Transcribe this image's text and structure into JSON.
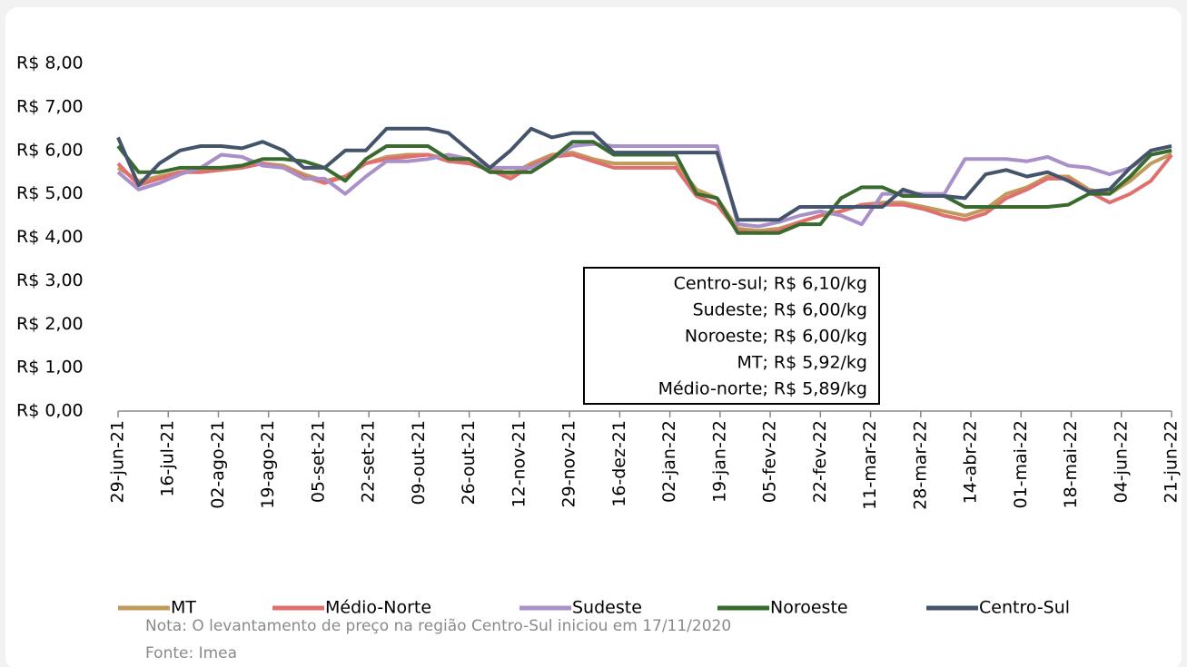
{
  "chart_data": {
    "type": "line",
    "x": [
      "2021-06-29",
      "2021-07-06",
      "2021-07-13",
      "2021-07-20",
      "2021-07-27",
      "2021-08-03",
      "2021-08-10",
      "2021-08-17",
      "2021-08-24",
      "2021-08-31",
      "2021-09-07",
      "2021-09-14",
      "2021-09-21",
      "2021-09-28",
      "2021-10-05",
      "2021-10-12",
      "2021-10-19",
      "2021-10-26",
      "2021-11-02",
      "2021-11-09",
      "2021-11-16",
      "2021-11-23",
      "2021-11-30",
      "2021-12-07",
      "2021-12-14",
      "2021-12-21",
      "2021-12-28",
      "2022-01-04",
      "2022-01-11",
      "2022-01-18",
      "2022-01-25",
      "2022-02-01",
      "2022-02-08",
      "2022-02-15",
      "2022-02-22",
      "2022-03-01",
      "2022-03-08",
      "2022-03-15",
      "2022-03-22",
      "2022-03-29",
      "2022-04-05",
      "2022-04-12",
      "2022-04-19",
      "2022-04-26",
      "2022-05-03",
      "2022-05-10",
      "2022-05-17",
      "2022-05-24",
      "2022-05-31",
      "2022-06-07",
      "2022-06-14",
      "2022-06-21"
    ],
    "xlim": [
      "2021-06-29",
      "2022-06-21"
    ],
    "xticks": [
      {
        "value": "2021-06-29",
        "label": "29-jun-21"
      },
      {
        "value": "2021-07-16",
        "label": "16-jul-21"
      },
      {
        "value": "2021-08-02",
        "label": "02-ago-21"
      },
      {
        "value": "2021-08-19",
        "label": "19-ago-21"
      },
      {
        "value": "2021-09-05",
        "label": "05-set-21"
      },
      {
        "value": "2021-09-22",
        "label": "22-set-21"
      },
      {
        "value": "2021-10-09",
        "label": "09-out-21"
      },
      {
        "value": "2021-10-26",
        "label": "26-out-21"
      },
      {
        "value": "2021-11-12",
        "label": "12-nov-21"
      },
      {
        "value": "2021-11-29",
        "label": "29-nov-21"
      },
      {
        "value": "2021-12-16",
        "label": "16-dez-21"
      },
      {
        "value": "2022-01-02",
        "label": "02-jan-22"
      },
      {
        "value": "2022-01-19",
        "label": "19-jan-22"
      },
      {
        "value": "2022-02-05",
        "label": "05-fev-22"
      },
      {
        "value": "2022-02-22",
        "label": "22-fev-22"
      },
      {
        "value": "2022-03-11",
        "label": "11-mar-22"
      },
      {
        "value": "2022-03-28",
        "label": "28-mar-22"
      },
      {
        "value": "2022-04-14",
        "label": "14-abr-22"
      },
      {
        "value": "2022-05-01",
        "label": "01-mai-22"
      },
      {
        "value": "2022-05-18",
        "label": "18-mai-22"
      },
      {
        "value": "2022-06-04",
        "label": "04-jun-22"
      },
      {
        "value": "2022-06-21",
        "label": "21-jun-22"
      }
    ],
    "ylim": [
      0,
      8
    ],
    "yticks": [
      {
        "value": 0,
        "label": "R$ 0,00"
      },
      {
        "value": 1,
        "label": "R$ 1,00"
      },
      {
        "value": 2,
        "label": "R$ 2,00"
      },
      {
        "value": 3,
        "label": "R$ 3,00"
      },
      {
        "value": 4,
        "label": "R$ 4,00"
      },
      {
        "value": 5,
        "label": "R$ 5,00"
      },
      {
        "value": 6,
        "label": "R$ 6,00"
      },
      {
        "value": 7,
        "label": "R$ 7,00"
      },
      {
        "value": 8,
        "label": "R$ 8,00"
      }
    ],
    "series": [
      {
        "name": "MT",
        "color": "#c09a5b",
        "values": [
          5.6,
          5.3,
          5.4,
          5.5,
          5.55,
          5.6,
          5.65,
          5.7,
          5.65,
          5.45,
          5.3,
          5.4,
          5.7,
          5.85,
          5.9,
          5.9,
          5.8,
          5.75,
          5.6,
          5.45,
          5.7,
          5.9,
          5.95,
          5.8,
          5.7,
          5.7,
          5.7,
          5.7,
          5.1,
          4.9,
          4.2,
          4.15,
          4.2,
          4.35,
          4.5,
          4.6,
          4.75,
          4.8,
          4.8,
          4.7,
          4.6,
          4.5,
          4.65,
          5.0,
          5.15,
          5.4,
          5.4,
          5.1,
          5.0,
          5.3,
          5.7,
          5.92
        ]
      },
      {
        "name": "Médio-Norte",
        "color": "#e07070",
        "values": [
          5.7,
          5.2,
          5.35,
          5.5,
          5.5,
          5.55,
          5.6,
          5.7,
          5.6,
          5.4,
          5.25,
          5.4,
          5.7,
          5.8,
          5.85,
          5.9,
          5.75,
          5.7,
          5.55,
          5.35,
          5.65,
          5.85,
          5.9,
          5.75,
          5.6,
          5.6,
          5.6,
          5.6,
          4.95,
          4.75,
          4.15,
          4.1,
          4.15,
          4.35,
          4.5,
          4.6,
          4.75,
          4.75,
          4.75,
          4.65,
          4.5,
          4.4,
          4.55,
          4.9,
          5.1,
          5.35,
          5.35,
          5.05,
          4.8,
          5.0,
          5.3,
          5.89
        ]
      },
      {
        "name": "Sudeste",
        "color": "#a990c8",
        "values": [
          5.5,
          5.1,
          5.25,
          5.45,
          5.6,
          5.9,
          5.85,
          5.65,
          5.6,
          5.35,
          5.35,
          5.0,
          5.4,
          5.75,
          5.75,
          5.8,
          5.9,
          5.8,
          5.6,
          5.6,
          5.6,
          5.8,
          6.1,
          6.15,
          6.1,
          6.1,
          6.1,
          6.1,
          6.1,
          6.1,
          4.3,
          4.25,
          4.35,
          4.5,
          4.6,
          4.5,
          4.3,
          5.0,
          5.0,
          5.0,
          5.0,
          5.8,
          5.8,
          5.8,
          5.75,
          5.85,
          5.65,
          5.6,
          5.45,
          5.6,
          5.9,
          6.0
        ]
      },
      {
        "name": "Noroeste",
        "color": "#3a6b2e",
        "values": [
          6.1,
          5.5,
          5.5,
          5.6,
          5.6,
          5.6,
          5.65,
          5.8,
          5.8,
          5.75,
          5.6,
          5.3,
          5.8,
          6.1,
          6.1,
          6.1,
          5.8,
          5.8,
          5.5,
          5.5,
          5.5,
          5.8,
          6.2,
          6.2,
          5.9,
          5.9,
          5.9,
          5.9,
          5.0,
          4.9,
          4.1,
          4.1,
          4.1,
          4.3,
          4.3,
          4.9,
          5.15,
          5.15,
          4.95,
          4.95,
          4.95,
          4.7,
          4.7,
          4.7,
          4.7,
          4.7,
          4.75,
          5.0,
          5.0,
          5.4,
          5.9,
          6.0
        ]
      },
      {
        "name": "Centro-Sul",
        "color": "#44546a",
        "values": [
          6.3,
          5.2,
          5.7,
          6.0,
          6.1,
          6.1,
          6.05,
          6.2,
          6.0,
          5.6,
          5.6,
          6.0,
          6.0,
          6.5,
          6.5,
          6.5,
          6.4,
          6.0,
          5.6,
          6.0,
          6.5,
          6.3,
          6.4,
          6.4,
          5.95,
          5.95,
          5.95,
          5.95,
          5.95,
          5.95,
          4.4,
          4.4,
          4.4,
          4.7,
          4.7,
          4.7,
          4.7,
          4.7,
          5.1,
          4.95,
          4.95,
          4.9,
          5.45,
          5.55,
          5.4,
          5.5,
          5.3,
          5.05,
          5.1,
          5.6,
          6.0,
          6.1
        ]
      }
    ],
    "annotations": [
      "Centro-sul; R$ 6,10/kg",
      "Sudeste; R$ 6,00/kg",
      "Noroeste; R$ 6,00/kg",
      "MT; R$ 5,92/kg",
      "Médio-norte; R$ 5,89/kg"
    ],
    "notes": [
      "Nota: O levantamento de preço na região Centro-Sul iniciou em 17/11/2020",
      "Fonte: Imea"
    ]
  }
}
